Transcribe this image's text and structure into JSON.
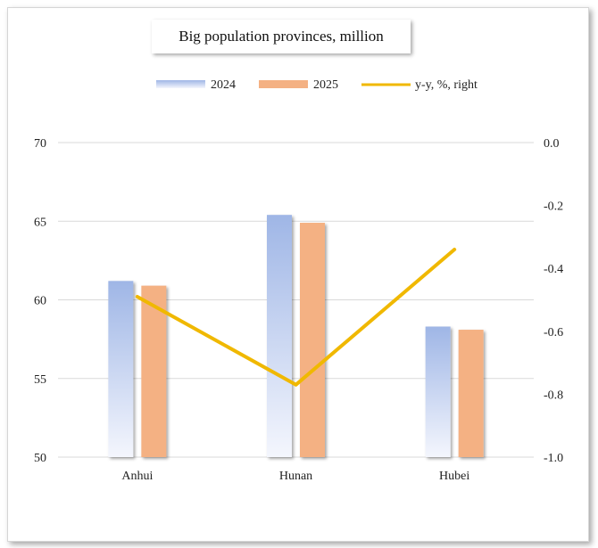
{
  "chart_data": {
    "type": "bar",
    "title": "Big population provinces, million",
    "categories": [
      "Anhui",
      "Hunan",
      "Hubei"
    ],
    "series": [
      {
        "name": "2024",
        "type": "bar",
        "axis": "left",
        "values": [
          61.2,
          65.4,
          58.3
        ]
      },
      {
        "name": "2025",
        "type": "bar",
        "axis": "left",
        "values": [
          60.9,
          64.9,
          58.1
        ]
      },
      {
        "name": "y-y, %, right",
        "type": "line",
        "axis": "right",
        "values": [
          -0.49,
          -0.77,
          -0.34
        ]
      }
    ],
    "ylim": [
      50,
      70
    ],
    "yticks": [
      "70",
      "65",
      "60",
      "55",
      "50"
    ],
    "y2lim": [
      -1.0,
      0.0
    ],
    "y2ticks": [
      "0.0",
      "-0.2",
      "-0.4",
      "-0.6",
      "-0.8",
      "-1.0"
    ],
    "grid": true,
    "legend_position": "top",
    "colors": {
      "s2024_top": "#9fb6e6",
      "s2024_bottom": "#f1f4fc",
      "s2025": "#f4b183",
      "line": "#f0b800",
      "grid": "#d9d9d9"
    }
  }
}
